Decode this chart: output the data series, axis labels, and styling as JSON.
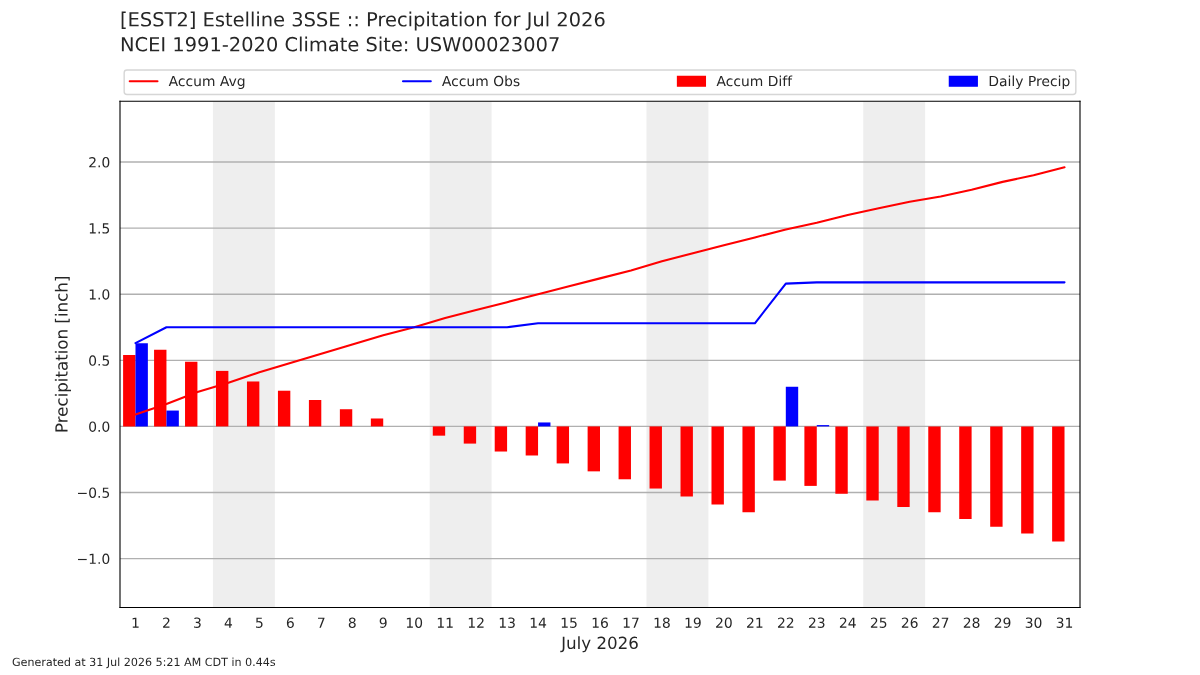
{
  "chart_data": {
    "type": "bar",
    "title": "[ESST2] Estelline 3SSE :: Precipitation for Jul 2026",
    "subtitle": "NCEI 1991-2020 Climate Site: USW00023007",
    "xlabel": "July 2026",
    "ylabel": "Precipitation [inch]",
    "x": [
      1,
      2,
      3,
      4,
      5,
      6,
      7,
      8,
      9,
      10,
      11,
      12,
      13,
      14,
      15,
      16,
      17,
      18,
      19,
      20,
      21,
      22,
      23,
      24,
      25,
      26,
      27,
      28,
      29,
      30,
      31
    ],
    "series": [
      {
        "name": "Accum Avg",
        "type": "line",
        "color": "#ff0000",
        "values": [
          0.09,
          0.17,
          0.26,
          0.33,
          0.41,
          0.48,
          0.55,
          0.62,
          0.69,
          0.75,
          0.82,
          0.88,
          0.94,
          1.0,
          1.06,
          1.12,
          1.18,
          1.25,
          1.31,
          1.37,
          1.43,
          1.49,
          1.54,
          1.6,
          1.65,
          1.7,
          1.74,
          1.79,
          1.85,
          1.9,
          1.96
        ]
      },
      {
        "name": "Accum Obs",
        "type": "line",
        "color": "#0000ff",
        "values": [
          0.63,
          0.75,
          0.75,
          0.75,
          0.75,
          0.75,
          0.75,
          0.75,
          0.75,
          0.75,
          0.75,
          0.75,
          0.75,
          0.78,
          0.78,
          0.78,
          0.78,
          0.78,
          0.78,
          0.78,
          0.78,
          1.08,
          1.09,
          1.09,
          1.09,
          1.09,
          1.09,
          1.09,
          1.09,
          1.09,
          1.09
        ]
      },
      {
        "name": "Accum Diff",
        "color": "#ff0000",
        "values": [
          0.54,
          0.58,
          0.49,
          0.42,
          0.34,
          0.27,
          0.2,
          0.13,
          0.06,
          0.0,
          -0.07,
          -0.13,
          -0.19,
          -0.22,
          -0.28,
          -0.34,
          -0.4,
          -0.47,
          -0.53,
          -0.59,
          -0.65,
          -0.41,
          -0.45,
          -0.51,
          -0.56,
          -0.61,
          -0.65,
          -0.7,
          -0.76,
          -0.81,
          -0.87
        ]
      },
      {
        "name": "Daily Precip",
        "color": "#0000ff",
        "values": [
          0.63,
          0.12,
          0,
          0,
          0,
          0,
          0,
          0,
          0,
          0,
          0,
          0,
          0,
          0.03,
          0,
          0,
          0,
          0,
          0,
          0,
          0,
          0.3,
          0.01,
          0,
          0,
          0,
          0,
          0,
          0,
          0,
          0
        ]
      }
    ],
    "bands": [
      {
        "axis": "x",
        "from": 3.5,
        "to": 5.5,
        "color": "#eeeeee"
      },
      {
        "axis": "x",
        "from": 10.5,
        "to": 12.5,
        "color": "#eeeeee"
      },
      {
        "axis": "x",
        "from": 17.5,
        "to": 19.5,
        "color": "#eeeeee"
      },
      {
        "axis": "x",
        "from": 24.5,
        "to": 26.5,
        "color": "#eeeeee"
      }
    ],
    "xlim": [
      0.5,
      31.5
    ],
    "xticks": [
      1,
      2,
      3,
      4,
      5,
      6,
      7,
      8,
      9,
      10,
      11,
      12,
      13,
      14,
      15,
      16,
      17,
      18,
      19,
      20,
      21,
      22,
      23,
      24,
      25,
      26,
      27,
      28,
      29,
      30,
      31
    ],
    "ylim": [
      -1.37,
      2.46
    ],
    "yticks": [
      {
        "value": -1.0,
        "label": "−1.0"
      },
      {
        "value": -0.5,
        "label": "−0.5"
      },
      {
        "value": 0.0,
        "label": "0.0"
      },
      {
        "value": 0.5,
        "label": "0.5"
      },
      {
        "value": 1.0,
        "label": "1.0"
      },
      {
        "value": 1.5,
        "label": "1.5"
      },
      {
        "value": 2.0,
        "label": "2.0"
      }
    ],
    "grid": "y",
    "legend": "top",
    "annotations": [
      "Generated at 31 Jul 2026 5:21 AM CDT in 0.44s"
    ]
  }
}
